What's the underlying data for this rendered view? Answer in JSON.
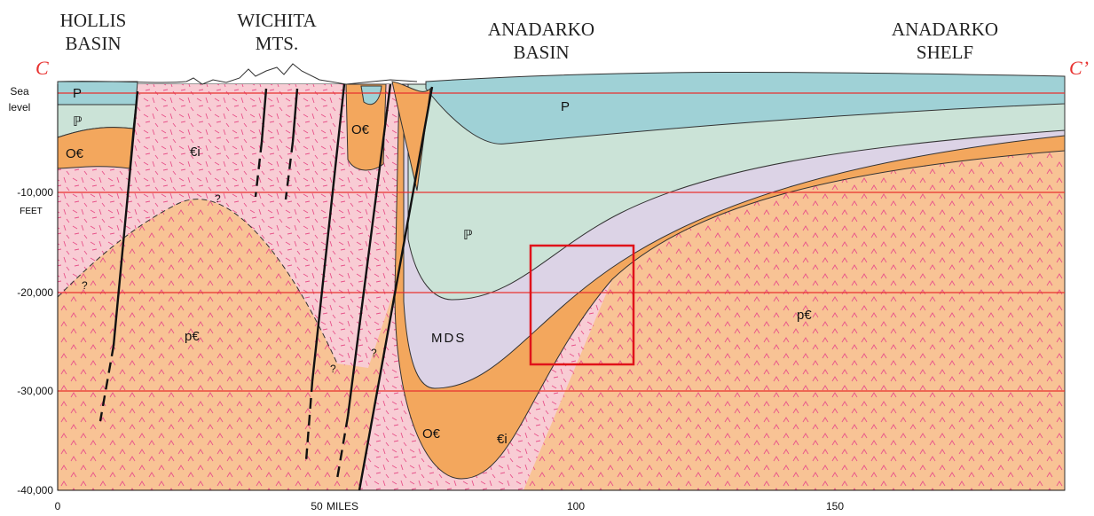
{
  "section": {
    "start": "C",
    "end": "C’"
  },
  "regions": [
    {
      "lines": [
        "HOLLIS",
        "BASIN"
      ]
    },
    {
      "lines": [
        "WICHITA",
        "MTS."
      ]
    },
    {
      "lines": [
        "ANADARKO",
        "BASIN"
      ]
    },
    {
      "lines": [
        "ANADARKO",
        "SHELF"
      ]
    }
  ],
  "depth_axis": {
    "sea_level": [
      "Sea",
      "level"
    ],
    "labels": [
      "-10,000",
      "-20,000",
      "-30,000",
      "-40,000"
    ],
    "unit": "FEET"
  },
  "distance_axis": {
    "labels": [
      "0",
      "50",
      "100",
      "150"
    ],
    "unit": "MILES"
  },
  "units": [
    "P",
    "ℙ",
    "O€",
    "€i",
    "O€",
    "P",
    "ℙ",
    "MDS",
    "p€",
    "O€",
    "€i",
    "p€"
  ],
  "queries": [
    "?",
    "?",
    "?",
    "?"
  ]
}
